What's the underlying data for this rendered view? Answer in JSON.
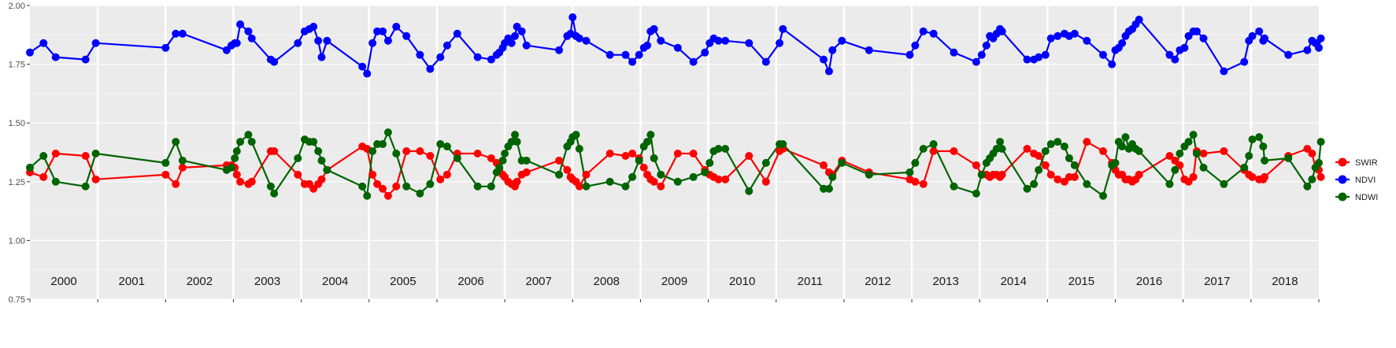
{
  "chart_data": {
    "type": "line",
    "title": "",
    "xlabel": "",
    "ylabel": "",
    "xlim": [
      2000,
      2019
    ],
    "ylim": [
      0.75,
      2.0
    ],
    "yticks": [
      "0.75",
      "1.00",
      "1.25",
      "1.50",
      "1.75",
      "2.00"
    ],
    "year_labels": [
      "2000",
      "2001",
      "2002",
      "2003",
      "2004",
      "2005",
      "2006",
      "2007",
      "2008",
      "2009",
      "2010",
      "2011",
      "2012",
      "2013",
      "2014",
      "2015",
      "2016",
      "2017",
      "2018"
    ],
    "grid": true,
    "legend_position": "right",
    "background_color": "#ebebeb",
    "grid_color": "#ffffff",
    "series": [
      {
        "name": "SWIR",
        "color": "#ff0000",
        "x": [
          2000.0,
          2000.2,
          2000.38,
          2000.82,
          2000.97,
          2002.0,
          2002.15,
          2002.25,
          2002.9,
          2002.97,
          2003.02,
          2003.05,
          2003.1,
          2003.22,
          2003.27,
          2003.55,
          2003.6,
          2003.95,
          2004.05,
          2004.12,
          2004.18,
          2004.25,
          2004.3,
          2004.38,
          2004.9,
          2004.97,
          2005.05,
          2005.12,
          2005.2,
          2005.28,
          2005.4,
          2005.55,
          2005.75,
          2005.9,
          2006.05,
          2006.15,
          2006.3,
          2006.6,
          2006.8,
          2006.88,
          2006.92,
          2006.97,
          2007.0,
          2007.05,
          2007.1,
          2007.15,
          2007.18,
          2007.25,
          2007.32,
          2007.8,
          2007.92,
          2007.97,
          2008.0,
          2008.05,
          2008.1,
          2008.2,
          2008.55,
          2008.78,
          2008.88,
          2008.98,
          2009.05,
          2009.1,
          2009.15,
          2009.2,
          2009.3,
          2009.55,
          2009.78,
          2009.95,
          2010.02,
          2010.08,
          2010.15,
          2010.25,
          2010.6,
          2010.85,
          2011.05,
          2011.1,
          2011.7,
          2011.78,
          2011.83,
          2011.97,
          2012.37,
          2012.97,
          2013.05,
          2013.17,
          2013.32,
          2013.62,
          2013.95,
          2014.03,
          2014.1,
          2014.15,
          2014.2,
          2014.25,
          2014.3,
          2014.33,
          2014.7,
          2014.8,
          2014.87,
          2014.97,
          2015.05,
          2015.15,
          2015.25,
          2015.32,
          2015.4,
          2015.58,
          2015.82,
          2015.95,
          2016.0,
          2016.05,
          2016.1,
          2016.15,
          2016.2,
          2016.25,
          2016.3,
          2016.35,
          2016.8,
          2016.88,
          2016.95,
          2017.02,
          2017.08,
          2017.15,
          2017.2,
          2017.3,
          2017.6,
          2017.9,
          2017.97,
          2018.02,
          2018.12,
          2018.18,
          2018.2,
          2018.55,
          2018.83,
          2018.9,
          2018.95,
          2019.0,
          2019.03
        ],
        "y": [
          1.29,
          1.27,
          1.37,
          1.36,
          1.26,
          1.28,
          1.24,
          1.31,
          1.32,
          1.32,
          1.31,
          1.28,
          1.25,
          1.24,
          1.25,
          1.38,
          1.38,
          1.28,
          1.24,
          1.24,
          1.22,
          1.24,
          1.26,
          1.3,
          1.4,
          1.39,
          1.28,
          1.24,
          1.22,
          1.19,
          1.23,
          1.38,
          1.38,
          1.36,
          1.26,
          1.28,
          1.37,
          1.37,
          1.35,
          1.33,
          1.3,
          1.28,
          1.27,
          1.25,
          1.24,
          1.23,
          1.25,
          1.28,
          1.29,
          1.34,
          1.3,
          1.27,
          1.26,
          1.25,
          1.23,
          1.28,
          1.37,
          1.36,
          1.37,
          1.35,
          1.31,
          1.28,
          1.26,
          1.25,
          1.23,
          1.37,
          1.37,
          1.3,
          1.28,
          1.27,
          1.26,
          1.26,
          1.36,
          1.25,
          1.38,
          1.39,
          1.32,
          1.29,
          1.28,
          1.34,
          1.29,
          1.26,
          1.25,
          1.24,
          1.38,
          1.38,
          1.32,
          1.28,
          1.28,
          1.27,
          1.28,
          1.28,
          1.27,
          1.28,
          1.39,
          1.37,
          1.36,
          1.32,
          1.28,
          1.26,
          1.25,
          1.27,
          1.27,
          1.42,
          1.38,
          1.33,
          1.3,
          1.28,
          1.28,
          1.26,
          1.26,
          1.25,
          1.26,
          1.28,
          1.36,
          1.34,
          1.32,
          1.26,
          1.25,
          1.27,
          1.38,
          1.37,
          1.38,
          1.3,
          1.28,
          1.27,
          1.26,
          1.26,
          1.27,
          1.36,
          1.39,
          1.37,
          1.31,
          1.3,
          1.27
        ]
      },
      {
        "name": "NDVI",
        "color": "#0000ff",
        "x": [
          2000.0,
          2000.2,
          2000.38,
          2000.82,
          2000.97,
          2002.0,
          2002.15,
          2002.25,
          2002.9,
          2002.97,
          2003.02,
          2003.05,
          2003.1,
          2003.22,
          2003.27,
          2003.55,
          2003.6,
          2003.95,
          2004.05,
          2004.12,
          2004.18,
          2004.25,
          2004.3,
          2004.38,
          2004.9,
          2004.97,
          2005.05,
          2005.12,
          2005.2,
          2005.28,
          2005.4,
          2005.55,
          2005.75,
          2005.9,
          2006.05,
          2006.15,
          2006.3,
          2006.6,
          2006.8,
          2006.88,
          2006.92,
          2006.97,
          2007.0,
          2007.05,
          2007.1,
          2007.15,
          2007.18,
          2007.25,
          2007.32,
          2007.8,
          2007.92,
          2007.97,
          2008.0,
          2008.05,
          2008.1,
          2008.2,
          2008.55,
          2008.78,
          2008.88,
          2008.98,
          2009.05,
          2009.1,
          2009.15,
          2009.2,
          2009.3,
          2009.55,
          2009.78,
          2009.95,
          2010.02,
          2010.08,
          2010.15,
          2010.25,
          2010.6,
          2010.85,
          2011.05,
          2011.1,
          2011.7,
          2011.78,
          2011.83,
          2011.97,
          2012.37,
          2012.97,
          2013.05,
          2013.17,
          2013.32,
          2013.62,
          2013.95,
          2014.03,
          2014.1,
          2014.15,
          2014.2,
          2014.25,
          2014.3,
          2014.33,
          2014.7,
          2014.8,
          2014.87,
          2014.97,
          2015.05,
          2015.15,
          2015.25,
          2015.32,
          2015.4,
          2015.58,
          2015.82,
          2015.95,
          2016.0,
          2016.05,
          2016.1,
          2016.15,
          2016.2,
          2016.25,
          2016.3,
          2016.35,
          2016.8,
          2016.88,
          2016.95,
          2017.02,
          2017.08,
          2017.15,
          2017.2,
          2017.3,
          2017.6,
          2017.9,
          2017.97,
          2018.02,
          2018.12,
          2018.18,
          2018.2,
          2018.55,
          2018.83,
          2018.9,
          2018.95,
          2019.0,
          2019.03
        ],
        "y": [
          1.8,
          1.84,
          1.78,
          1.77,
          1.84,
          1.82,
          1.88,
          1.88,
          1.81,
          1.83,
          1.84,
          1.84,
          1.92,
          1.89,
          1.86,
          1.77,
          1.76,
          1.84,
          1.89,
          1.9,
          1.91,
          1.85,
          1.78,
          1.85,
          1.74,
          1.71,
          1.84,
          1.89,
          1.89,
          1.85,
          1.91,
          1.87,
          1.79,
          1.73,
          1.78,
          1.83,
          1.88,
          1.78,
          1.77,
          1.79,
          1.8,
          1.82,
          1.84,
          1.86,
          1.84,
          1.87,
          1.91,
          1.89,
          1.83,
          1.81,
          1.87,
          1.88,
          1.95,
          1.87,
          1.86,
          1.85,
          1.79,
          1.79,
          1.76,
          1.79,
          1.82,
          1.83,
          1.89,
          1.9,
          1.85,
          1.82,
          1.76,
          1.8,
          1.84,
          1.86,
          1.85,
          1.85,
          1.84,
          1.76,
          1.84,
          1.9,
          1.77,
          1.72,
          1.81,
          1.85,
          1.81,
          1.79,
          1.83,
          1.89,
          1.88,
          1.8,
          1.76,
          1.79,
          1.83,
          1.87,
          1.86,
          1.88,
          1.9,
          1.89,
          1.77,
          1.77,
          1.78,
          1.79,
          1.86,
          1.87,
          1.88,
          1.87,
          1.88,
          1.85,
          1.79,
          1.75,
          1.81,
          1.82,
          1.84,
          1.87,
          1.89,
          1.9,
          1.92,
          1.94,
          1.79,
          1.77,
          1.81,
          1.82,
          1.87,
          1.89,
          1.89,
          1.86,
          1.72,
          1.76,
          1.85,
          1.87,
          1.89,
          1.85,
          1.86,
          1.79,
          1.81,
          1.85,
          1.84,
          1.82,
          1.86
        ]
      },
      {
        "name": "NDWI",
        "color": "#006400",
        "x": [
          2000.0,
          2000.2,
          2000.38,
          2000.82,
          2000.97,
          2002.0,
          2002.15,
          2002.25,
          2002.9,
          2002.97,
          2003.02,
          2003.05,
          2003.1,
          2003.22,
          2003.27,
          2003.55,
          2003.6,
          2003.95,
          2004.05,
          2004.12,
          2004.18,
          2004.25,
          2004.3,
          2004.38,
          2004.9,
          2004.97,
          2005.05,
          2005.12,
          2005.2,
          2005.28,
          2005.4,
          2005.55,
          2005.75,
          2005.9,
          2006.05,
          2006.15,
          2006.3,
          2006.6,
          2006.8,
          2006.88,
          2006.92,
          2006.97,
          2007.0,
          2007.05,
          2007.1,
          2007.15,
          2007.18,
          2007.25,
          2007.32,
          2007.8,
          2007.92,
          2007.97,
          2008.0,
          2008.05,
          2008.1,
          2008.2,
          2008.55,
          2008.78,
          2008.88,
          2008.98,
          2009.05,
          2009.1,
          2009.15,
          2009.2,
          2009.3,
          2009.55,
          2009.78,
          2009.95,
          2010.02,
          2010.08,
          2010.15,
          2010.25,
          2010.6,
          2010.85,
          2011.05,
          2011.1,
          2011.7,
          2011.78,
          2011.83,
          2011.97,
          2012.37,
          2012.97,
          2013.05,
          2013.17,
          2013.32,
          2013.62,
          2013.95,
          2014.03,
          2014.1,
          2014.15,
          2014.2,
          2014.25,
          2014.3,
          2014.33,
          2014.7,
          2014.8,
          2014.87,
          2014.97,
          2015.05,
          2015.15,
          2015.25,
          2015.32,
          2015.4,
          2015.58,
          2015.82,
          2015.95,
          2016.0,
          2016.05,
          2016.1,
          2016.15,
          2016.2,
          2016.25,
          2016.3,
          2016.35,
          2016.8,
          2016.88,
          2016.95,
          2017.02,
          2017.08,
          2017.15,
          2017.2,
          2017.3,
          2017.6,
          2017.9,
          2017.97,
          2018.02,
          2018.12,
          2018.18,
          2018.2,
          2018.55,
          2018.83,
          2018.9,
          2018.95,
          2019.0,
          2019.03
        ],
        "y": [
          1.31,
          1.36,
          1.25,
          1.23,
          1.37,
          1.33,
          1.42,
          1.34,
          1.3,
          1.31,
          1.35,
          1.38,
          1.42,
          1.45,
          1.42,
          1.23,
          1.2,
          1.35,
          1.43,
          1.42,
          1.42,
          1.38,
          1.34,
          1.3,
          1.23,
          1.19,
          1.38,
          1.41,
          1.41,
          1.46,
          1.37,
          1.23,
          1.2,
          1.24,
          1.41,
          1.4,
          1.35,
          1.23,
          1.23,
          1.29,
          1.31,
          1.34,
          1.37,
          1.4,
          1.42,
          1.45,
          1.42,
          1.34,
          1.34,
          1.28,
          1.4,
          1.42,
          1.44,
          1.45,
          1.39,
          1.23,
          1.25,
          1.23,
          1.27,
          1.34,
          1.4,
          1.42,
          1.45,
          1.35,
          1.28,
          1.25,
          1.27,
          1.29,
          1.33,
          1.38,
          1.39,
          1.39,
          1.21,
          1.33,
          1.41,
          1.41,
          1.22,
          1.22,
          1.27,
          1.33,
          1.28,
          1.29,
          1.33,
          1.39,
          1.41,
          1.23,
          1.2,
          1.28,
          1.33,
          1.35,
          1.37,
          1.39,
          1.42,
          1.39,
          1.22,
          1.24,
          1.3,
          1.38,
          1.41,
          1.42,
          1.4,
          1.35,
          1.32,
          1.24,
          1.19,
          1.32,
          1.33,
          1.42,
          1.4,
          1.44,
          1.39,
          1.41,
          1.39,
          1.38,
          1.24,
          1.3,
          1.37,
          1.4,
          1.42,
          1.45,
          1.37,
          1.31,
          1.24,
          1.31,
          1.36,
          1.43,
          1.44,
          1.4,
          1.34,
          1.35,
          1.23,
          1.26,
          1.31,
          1.33,
          1.42
        ]
      }
    ]
  }
}
